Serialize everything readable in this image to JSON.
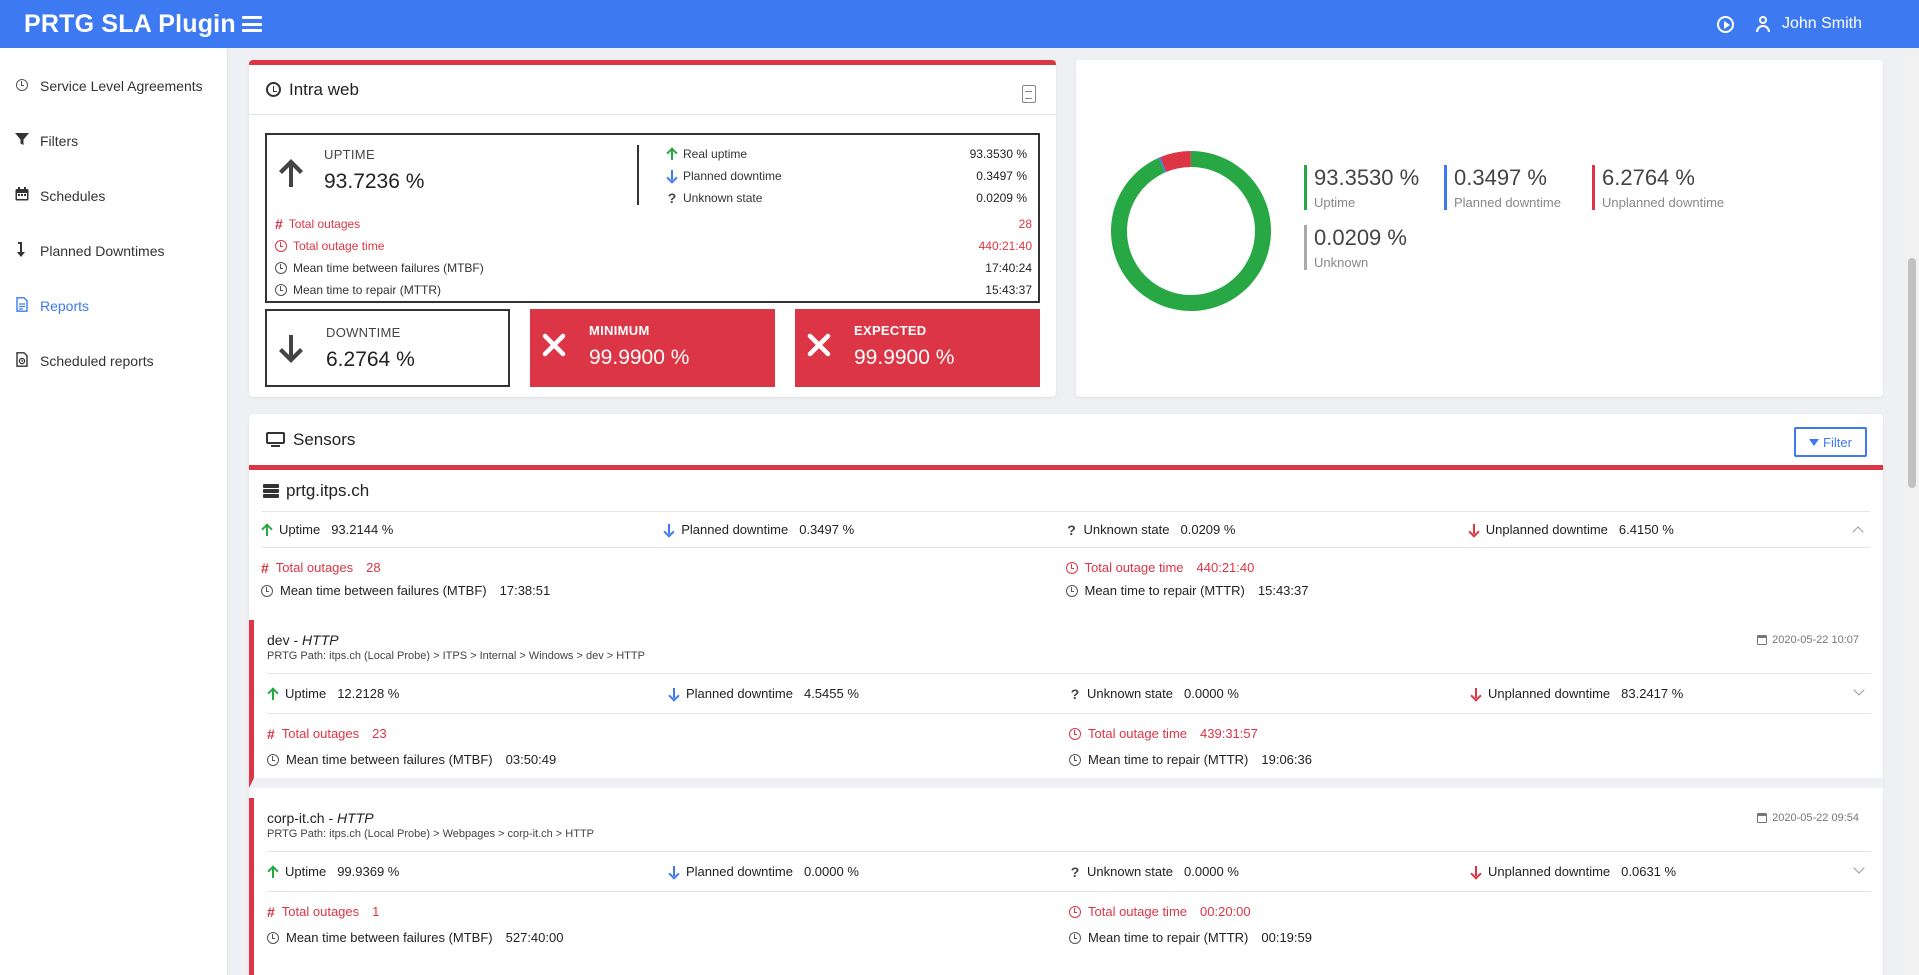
{
  "app": {
    "brand": "PRTG SLA Plugin",
    "user_name": "John Smith"
  },
  "sidebar": {
    "items": [
      {
        "label": "Service Level Agreements",
        "icon": "clock-icon",
        "active": false
      },
      {
        "label": "Filters",
        "icon": "filter-icon",
        "active": false
      },
      {
        "label": "Schedules",
        "icon": "calendar-icon",
        "active": false
      },
      {
        "label": "Planned Downtimes",
        "icon": "downtime-icon",
        "active": false
      },
      {
        "label": "Reports",
        "icon": "report-icon",
        "active": true
      },
      {
        "label": "Scheduled reports",
        "icon": "scheduled-report-icon",
        "active": false
      }
    ]
  },
  "intra": {
    "title": "Intra web",
    "uptime": {
      "label": "UPTIME",
      "value": "93.7236 %"
    },
    "real_uptime": {
      "label": "Real uptime",
      "value": "93.3530 %"
    },
    "planned_downtime": {
      "label": "Planned downtime",
      "value": "0.3497 %"
    },
    "unknown_state": {
      "label": "Unknown state",
      "value": "0.0209 %"
    },
    "total_outages": {
      "label": "Total outages",
      "value": "28"
    },
    "total_outage_time": {
      "label": "Total outage time",
      "value": "440:21:40"
    },
    "mtbf": {
      "label": "Mean time between failures (MTBF)",
      "value": "17:40:24"
    },
    "mttr": {
      "label": "Mean time to repair (MTTR)",
      "value": "15:43:37"
    },
    "downtime": {
      "label": "DOWNTIME",
      "value": "6.2764 %"
    },
    "minimum": {
      "label": "MINIMUM",
      "value": "99.9900 %"
    },
    "expected": {
      "label": "EXPECTED",
      "value": "99.9900 %"
    }
  },
  "chart_data": {
    "type": "pie",
    "donut": true,
    "categories": [
      "Uptime",
      "Planned downtime",
      "Unplanned downtime",
      "Unknown"
    ],
    "values": [
      93.353,
      0.3497,
      6.2764,
      0.0209
    ],
    "value_labels": [
      "93.3530 %",
      "0.3497 %",
      "6.2764 %",
      "0.0209 %"
    ],
    "colors": [
      "#28a745",
      "#3d7af2",
      "#dc3545",
      "#aaaaaa"
    ],
    "legend": "right"
  },
  "sensors": {
    "title": "Sensors",
    "filter_label": "Filter",
    "group": {
      "name": "prtg.itps.ch",
      "uptime": "93.2144 %",
      "planned": "0.3497 %",
      "unknown": "0.0209 %",
      "unplanned": "6.4150 %",
      "total_outages": "28",
      "total_outage_time": "440:21:40",
      "mtbf": "17:38:51",
      "mttr": "15:43:37"
    },
    "labels": {
      "uptime": "Uptime",
      "planned": "Planned downtime",
      "unknown": "Unknown state",
      "unplanned": "Unplanned downtime",
      "total_outages": "Total outages",
      "total_outage_time": "Total outage time",
      "mtbf": "Mean time between failures (MTBF)",
      "mttr": "Mean time to repair (MTTR)",
      "path_prefix": "PRTG Path:"
    },
    "items": [
      {
        "name": "dev",
        "type": "HTTP",
        "date": "2020-05-22 10:07",
        "path": "itps.ch (Local Probe) > ITPS > Internal > Windows > dev > HTTP",
        "uptime": "12.2128 %",
        "planned": "4.5455 %",
        "unknown": "0.0000 %",
        "unplanned": "83.2417 %",
        "total_outages": "23",
        "total_outage_time": "439:31:57",
        "mtbf": "03:50:49",
        "mttr": "19:06:36"
      },
      {
        "name": "corp-it.ch",
        "type": "HTTP",
        "date": "2020-05-22 09:54",
        "path": "itps.ch (Local Probe) > Webpages > corp-it.ch > HTTP",
        "uptime": "99.9369 %",
        "planned": "0.0000 %",
        "unknown": "0.0000 %",
        "unplanned": "0.0631 %",
        "total_outages": "1",
        "total_outage_time": "00:20:00",
        "mtbf": "527:40:00",
        "mttr": "00:19:59"
      }
    ]
  }
}
